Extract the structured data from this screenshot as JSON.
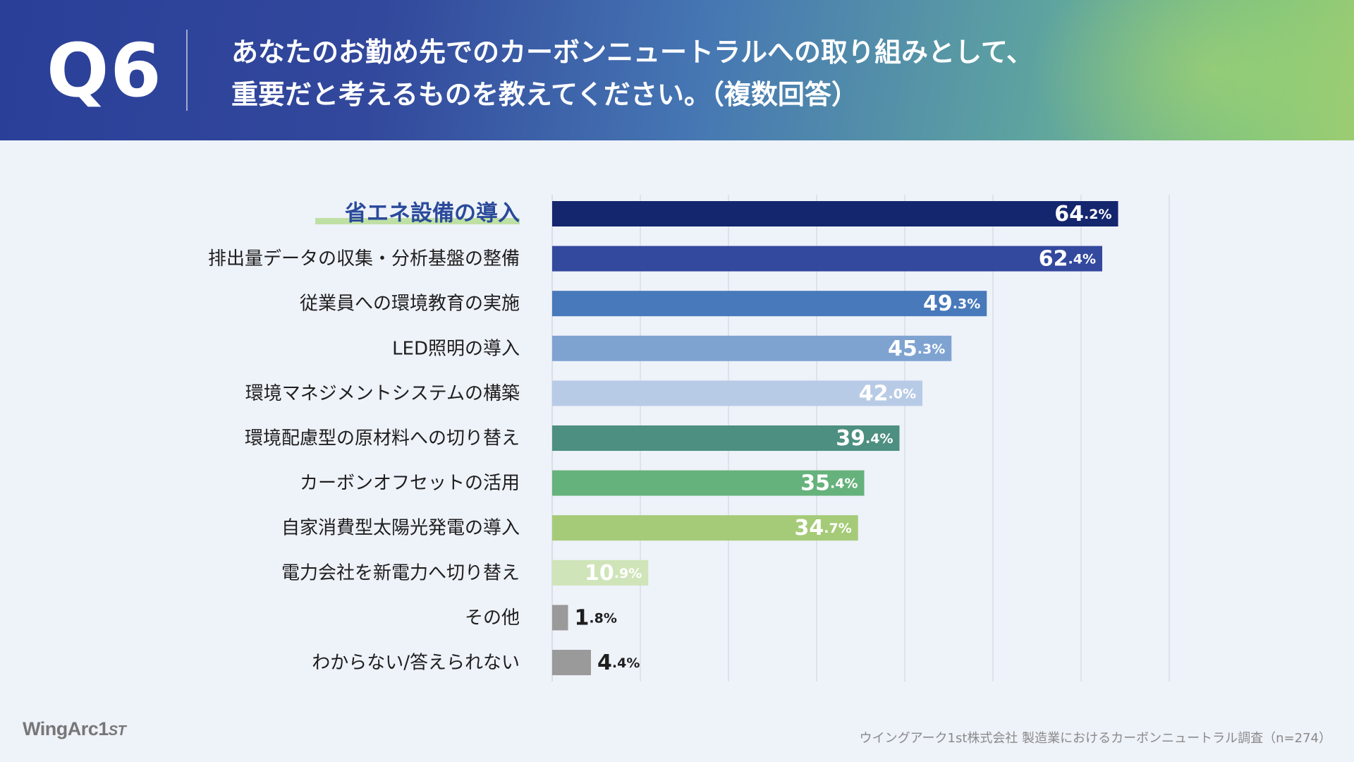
{
  "header": {
    "q_number": "Q6",
    "title_line1": "あなたのお勤め先でのカーボンニュートラルへの取り組みとして、",
    "title_line2": "重要だと考えるものを教えてください。（複数回答）"
  },
  "chart_data": {
    "type": "bar",
    "orientation": "horizontal",
    "title": "あなたのお勤め先でのカーボンニュートラルへの取り組みとして、重要だと考えるものを教えてください。（複数回答）",
    "xlabel": "",
    "ylabel": "",
    "xlim": [
      0,
      70
    ],
    "grid_step": 10,
    "unit": "%",
    "highlight_index": 0,
    "categories": [
      "省エネ設備の導入",
      "排出量データの収集・分析基盤の整備",
      "従業員への環境教育の実施",
      "LED照明の導入",
      "環境マネジメントシステムの構築",
      "環境配慮型の原材料への切り替え",
      "カーボンオフセットの活用",
      "自家消費型太陽光発電の導入",
      "電力会社を新電力へ切り替え",
      "その他",
      "わからない/答えられない"
    ],
    "values": [
      64.2,
      62.4,
      49.3,
      45.3,
      42.0,
      39.4,
      35.4,
      34.7,
      10.9,
      1.8,
      4.4
    ],
    "colors": [
      "#14266e",
      "#33499e",
      "#4879ba",
      "#7fa3d1",
      "#b8cbe6",
      "#4d8f80",
      "#66b27c",
      "#a5cb78",
      "#cfe4b8",
      "#9a9a9a",
      "#9a9a9a"
    ]
  },
  "footer": {
    "logo_main": "WingArc",
    "logo_num": "1",
    "logo_st": "ST",
    "source": "ウイングアーク1st株式会社  製造業におけるカーボンニュートラル調査（n=274）"
  }
}
